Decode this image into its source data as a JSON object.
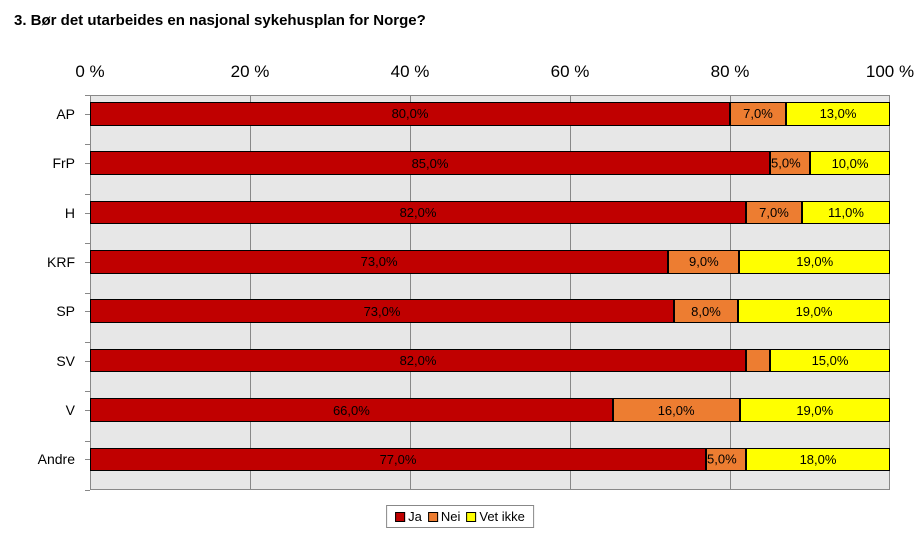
{
  "chart": {
    "type": "stacked-bar-horizontal",
    "title": "3. Bør det utarbeides en nasjonal sykehusplan for Norge?",
    "title_fontsize": 15,
    "title_fontweight": "bold",
    "background_color": "#ffffff",
    "plot_background": "#e7e7e7",
    "gridline_color": "#888888",
    "axis_color": "#888888",
    "label_fontsize": 14,
    "axis_fontsize": 17,
    "value_fontsize": 13,
    "xlim": [
      0,
      100
    ],
    "xtick_step": 20,
    "xtick_labels": [
      "0 %",
      "20 %",
      "40 %",
      "60 %",
      "80 %",
      "100 %"
    ],
    "categories": [
      "AP",
      "FrP",
      "H",
      "KRF",
      "SP",
      "SV",
      "V",
      "Andre"
    ],
    "series": [
      {
        "name": "Ja",
        "color": "#c00000"
      },
      {
        "name": "Nei",
        "color": "#ed7d31"
      },
      {
        "name": "Vet ikke",
        "color": "#ffff00"
      }
    ],
    "data": [
      {
        "cat": "AP",
        "values": [
          80.0,
          7.0,
          13.0
        ],
        "labels": [
          "80,0%",
          "7,0%",
          "13,0%"
        ]
      },
      {
        "cat": "FrP",
        "values": [
          85.0,
          5.0,
          10.0
        ],
        "labels": [
          "85,0%",
          "5,0%",
          "10,0%"
        ]
      },
      {
        "cat": "H",
        "values": [
          82.0,
          7.0,
          11.0
        ],
        "labels": [
          "82,0%",
          "7,0%",
          "11,0%"
        ]
      },
      {
        "cat": "KRF",
        "values": [
          73.0,
          9.0,
          19.0
        ],
        "labels": [
          "73,0%",
          "9,0%",
          "19,0%"
        ]
      },
      {
        "cat": "SP",
        "values": [
          73.0,
          8.0,
          19.0
        ],
        "labels": [
          "73,0%",
          "8,0%",
          "19,0%"
        ]
      },
      {
        "cat": "SV",
        "values": [
          82.0,
          3.0,
          15.0
        ],
        "labels": [
          "82,0%",
          "",
          "15,0%"
        ]
      },
      {
        "cat": "V",
        "values": [
          66.0,
          16.0,
          19.0
        ],
        "labels": [
          "66,0%",
          "16,0%",
          "19,0%"
        ]
      },
      {
        "cat": "Andre",
        "values": [
          77.0,
          5.0,
          18.0
        ],
        "labels": [
          "77,0%",
          "5,0%",
          "18,0%"
        ]
      }
    ],
    "bar_height_ratio": 0.48,
    "row_height": 49.4
  }
}
